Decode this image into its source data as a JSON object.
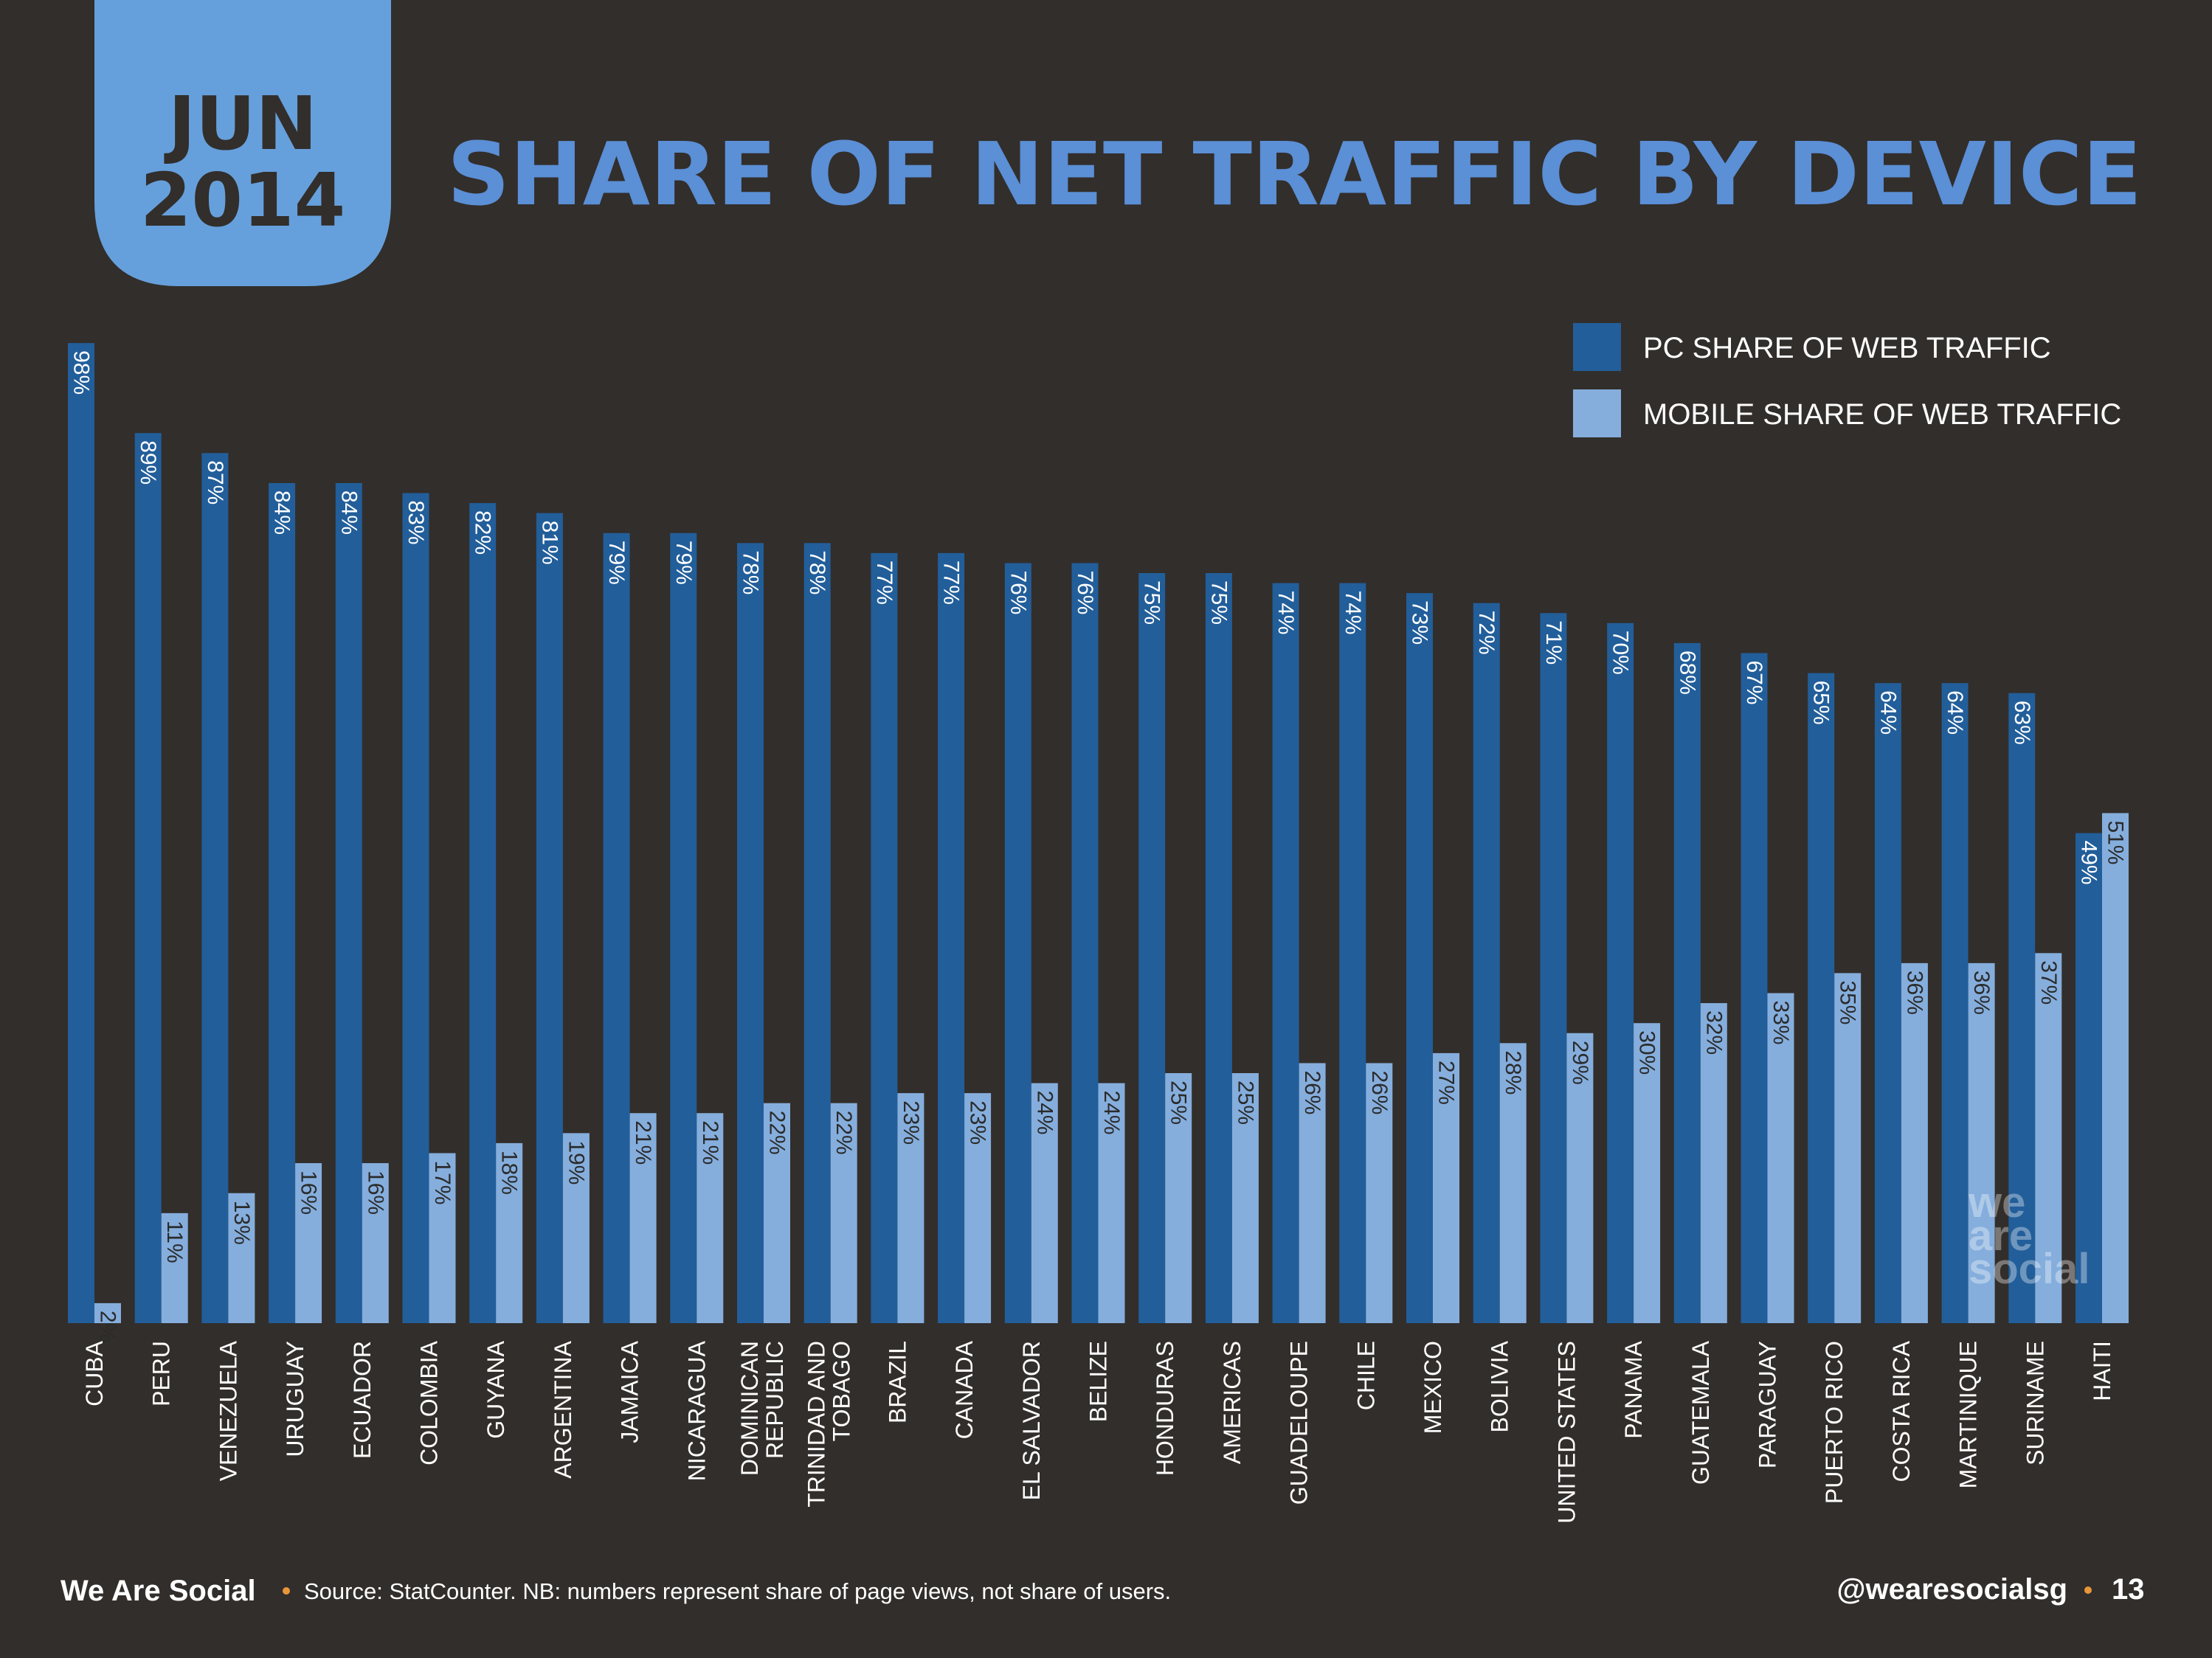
{
  "badge": {
    "month": "JUN",
    "year": "2014"
  },
  "colors": {
    "background": "#322e2b",
    "pc": "#225e9a",
    "mobile": "#85aedd",
    "title": "#5b8fd6",
    "badge": "#66a0dc",
    "accent_dot": "#e8963a"
  },
  "chart_data": {
    "type": "bar",
    "title": "SHARE OF NET TRAFFIC BY DEVICE",
    "legend_position": "top-right",
    "ylim": [
      0,
      100
    ],
    "grid": false,
    "categories": [
      "CUBA",
      "PERU",
      "VENEZUELA",
      "URUGUAY",
      "ECUADOR",
      "COLOMBIA",
      "GUYANA",
      "ARGENTINA",
      "JAMAICA",
      "NICARAGUA",
      "DOMINICAN REPUBLIC",
      "TRINIDAD AND TOBAGO",
      "BRAZIL",
      "CANADA",
      "EL SALVADOR",
      "BELIZE",
      "HONDURAS",
      "AMERICAS",
      "GUADELOUPE",
      "CHILE",
      "MEXICO",
      "BOLIVIA",
      "UNITED STATES",
      "PANAMA",
      "GUATEMALA",
      "PARAGUAY",
      "PUERTO RICO",
      "COSTA RICA",
      "MARTINIQUE",
      "SURINAME",
      "HAITI"
    ],
    "series": [
      {
        "name": "PC SHARE OF WEB TRAFFIC",
        "values": [
          98,
          89,
          87,
          84,
          84,
          83,
          82,
          81,
          79,
          79,
          78,
          78,
          77,
          77,
          76,
          76,
          75,
          75,
          74,
          74,
          73,
          72,
          71,
          70,
          68,
          67,
          65,
          64,
          64,
          63,
          49
        ]
      },
      {
        "name": "MOBILE SHARE OF WEB TRAFFIC",
        "values": [
          2,
          11,
          13,
          16,
          16,
          17,
          18,
          19,
          21,
          21,
          22,
          22,
          23,
          23,
          24,
          24,
          25,
          25,
          26,
          26,
          27,
          28,
          29,
          30,
          32,
          33,
          35,
          36,
          36,
          37,
          51
        ]
      }
    ]
  },
  "watermark": "we are social",
  "footer": {
    "brand": "We Are Social",
    "source": "Source: StatCounter. NB: numbers represent share of page views, not share of users.",
    "handle": "@wearesocialsg",
    "page": "13"
  }
}
